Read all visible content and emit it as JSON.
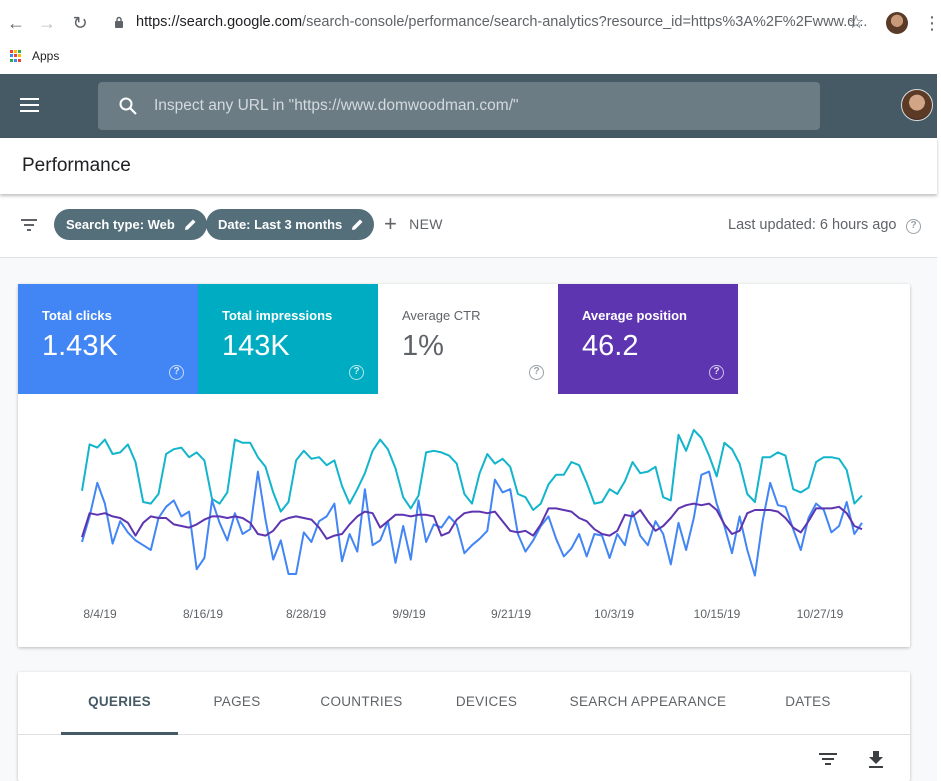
{
  "browser": {
    "url_host": "https://search.google.com",
    "url_path": "/search-console/performance/search-analytics?resource_id=https%3A%2F%2Fwww.d...",
    "bookmark_apps": "Apps"
  },
  "header": {
    "search_placeholder": "Inspect any URL in \"https://www.domwoodman.com/\""
  },
  "page": {
    "title": "Performance"
  },
  "filters": {
    "search_type": "Search type: Web",
    "date": "Date: Last 3 months",
    "new_label": "NEW",
    "last_updated": "Last updated: 6 hours ago"
  },
  "metrics": [
    {
      "label": "Total clicks",
      "value": "1.43K",
      "color": "#4285f4",
      "active": true
    },
    {
      "label": "Total impressions",
      "value": "143K",
      "color": "#00acc1",
      "active": true
    },
    {
      "label": "Average CTR",
      "value": "1%",
      "color": "#ffffff",
      "active": false
    },
    {
      "label": "Average position",
      "value": "46.2",
      "color": "#5e35b1",
      "active": true
    }
  ],
  "chart_data": {
    "type": "line",
    "x_tick_labels": [
      "8/4/19",
      "8/16/19",
      "8/28/19",
      "9/9/19",
      "9/21/19",
      "10/3/19",
      "10/15/19",
      "10/27/19"
    ],
    "series": [
      {
        "name": "Total impressions",
        "color": "#12b5cb",
        "values": [
          0.57,
          0.86,
          0.84,
          0.89,
          0.8,
          0.81,
          0.86,
          0.75,
          0.5,
          0.49,
          0.55,
          0.8,
          0.83,
          0.84,
          0.78,
          0.81,
          0.76,
          0.52,
          0.49,
          0.56,
          0.89,
          0.87,
          0.87,
          0.78,
          0.72,
          0.56,
          0.44,
          0.5,
          0.76,
          0.82,
          0.77,
          0.78,
          0.73,
          0.76,
          0.6,
          0.49,
          0.58,
          0.68,
          0.82,
          0.89,
          0.83,
          0.71,
          0.53,
          0.46,
          0.54,
          0.81,
          0.82,
          0.81,
          0.79,
          0.74,
          0.55,
          0.49,
          0.68,
          0.8,
          0.74,
          0.77,
          0.72,
          0.55,
          0.53,
          0.45,
          0.49,
          0.61,
          0.67,
          0.67,
          0.75,
          0.73,
          0.62,
          0.49,
          0.5,
          0.58,
          0.55,
          0.63,
          0.75,
          0.68,
          0.69,
          0.72,
          0.53,
          0.51,
          0.92,
          0.82,
          0.95,
          0.9,
          0.79,
          0.66,
          0.87,
          0.83,
          0.74,
          0.55,
          0.5,
          0.78,
          0.78,
          0.81,
          0.79,
          0.58,
          0.56,
          0.59,
          0.75,
          0.78,
          0.78,
          0.77,
          0.7,
          0.49,
          0.54
        ]
      },
      {
        "name": "Total clicks",
        "color": "#4285f4",
        "values": [
          0.25,
          0.41,
          0.62,
          0.49,
          0.24,
          0.38,
          0.31,
          0.26,
          0.23,
          0.2,
          0.4,
          0.47,
          0.51,
          0.41,
          0.44,
          0.08,
          0.15,
          0.51,
          0.37,
          0.26,
          0.43,
          0.3,
          0.33,
          0.69,
          0.39,
          0.14,
          0.26,
          0.05,
          0.05,
          0.31,
          0.25,
          0.38,
          0.41,
          0.49,
          0.13,
          0.3,
          0.19,
          0.58,
          0.23,
          0.26,
          0.38,
          0.12,
          0.35,
          0.14,
          0.51,
          0.25,
          0.36,
          0.34,
          0.41,
          0.36,
          0.18,
          0.23,
          0.27,
          0.32,
          0.64,
          0.56,
          0.58,
          0.3,
          0.19,
          0.26,
          0.35,
          0.41,
          0.27,
          0.16,
          0.21,
          0.3,
          0.16,
          0.3,
          0.29,
          0.15,
          0.3,
          0.23,
          0.44,
          0.29,
          0.23,
          0.38,
          0.3,
          0.11,
          0.37,
          0.2,
          0.4,
          0.67,
          0.69,
          0.49,
          0.35,
          0.18,
          0.41,
          0.2,
          0.04,
          0.38,
          0.62,
          0.48,
          0.47,
          0.33,
          0.2,
          0.4,
          0.49,
          0.45,
          0.31,
          0.35,
          0.5,
          0.3,
          0.37
        ]
      },
      {
        "name": "Average position",
        "color": "#5e35b1",
        "values": [
          0.28,
          0.43,
          0.42,
          0.43,
          0.41,
          0.4,
          0.37,
          0.29,
          0.37,
          0.41,
          0.4,
          0.4,
          0.36,
          0.35,
          0.34,
          0.36,
          0.39,
          0.41,
          0.41,
          0.4,
          0.41,
          0.4,
          0.37,
          0.3,
          0.29,
          0.32,
          0.38,
          0.4,
          0.41,
          0.4,
          0.39,
          0.34,
          0.27,
          0.29,
          0.3,
          0.36,
          0.41,
          0.44,
          0.43,
          0.34,
          0.38,
          0.42,
          0.42,
          0.41,
          0.42,
          0.42,
          0.41,
          0.29,
          0.31,
          0.39,
          0.43,
          0.44,
          0.44,
          0.43,
          0.44,
          0.38,
          0.32,
          0.31,
          0.32,
          0.29,
          0.36,
          0.46,
          0.46,
          0.45,
          0.44,
          0.4,
          0.38,
          0.33,
          0.3,
          0.29,
          0.32,
          0.42,
          0.41,
          0.45,
          0.38,
          0.32,
          0.35,
          0.4,
          0.46,
          0.48,
          0.49,
          0.48,
          0.49,
          0.45,
          0.36,
          0.3,
          0.32,
          0.43,
          0.45,
          0.45,
          0.45,
          0.44,
          0.4,
          0.34,
          0.31,
          0.38,
          0.46,
          0.46,
          0.46,
          0.47,
          0.43,
          0.35,
          0.33
        ]
      }
    ]
  },
  "tabs": [
    {
      "label": "QUERIES",
      "active": true
    },
    {
      "label": "PAGES",
      "active": false
    },
    {
      "label": "COUNTRIES",
      "active": false
    },
    {
      "label": "DEVICES",
      "active": false
    },
    {
      "label": "SEARCH APPEARANCE",
      "active": false
    },
    {
      "label": "DATES",
      "active": false
    }
  ]
}
